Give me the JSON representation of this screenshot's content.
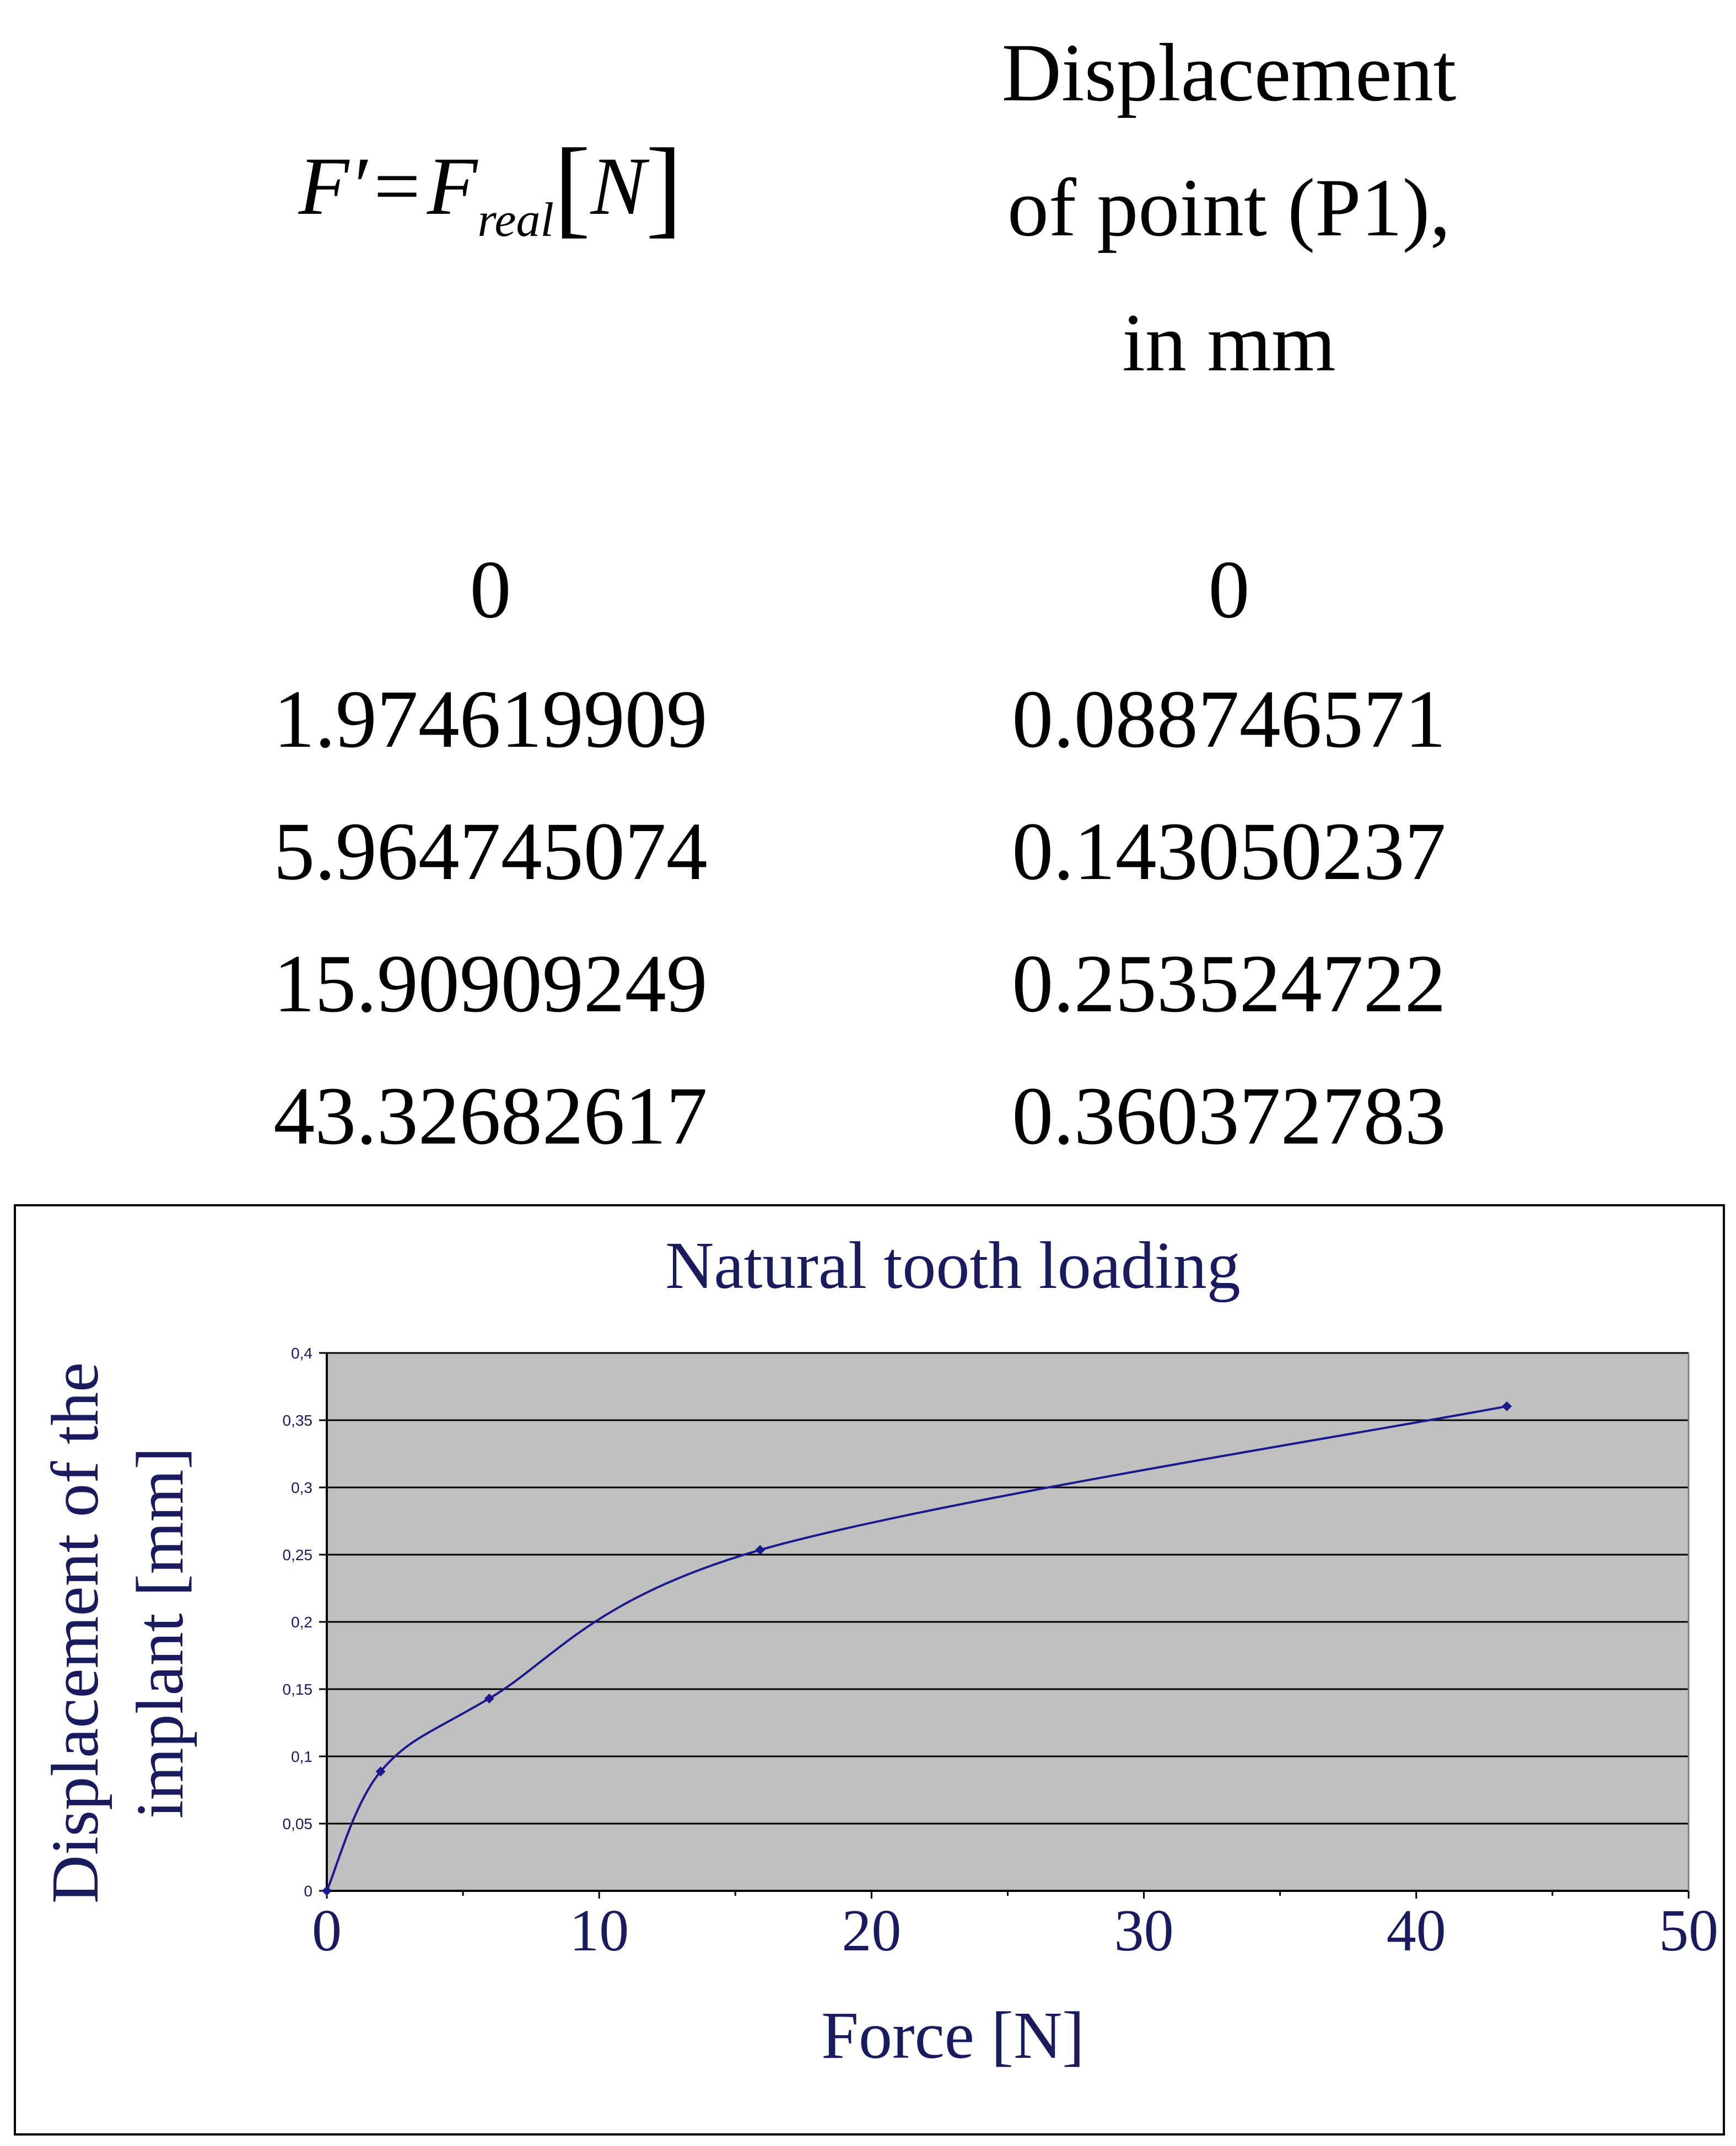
{
  "table": {
    "force_header": {
      "symbol": "F′",
      "equals": "=",
      "main": "F",
      "subscript": "real",
      "unit": "N"
    },
    "displacement_header": [
      "Displacement",
      "of point (P1),",
      "in mm"
    ],
    "force_values": [
      "0",
      "1.974619909",
      "5.964745074",
      "15.90909249",
      "43.32682617"
    ],
    "displacement_values": [
      "0",
      "0.088746571",
      "0.143050237",
      "0.253524722",
      "0.360372783"
    ]
  },
  "chart_data": {
    "type": "line",
    "title": "Natural tooth loading",
    "xlabel": "Force [N]",
    "ylabel": "Displacement of the implant [mm]",
    "xlim": [
      0,
      50
    ],
    "ylim": [
      0,
      0.4
    ],
    "xticks": [
      "0",
      "10",
      "20",
      "30",
      "40",
      "50"
    ],
    "yticks": [
      "0",
      "0,05",
      "0,1",
      "0,15",
      "0,2",
      "0,25",
      "0,3",
      "0,35",
      "0,4"
    ],
    "grid": "horizontal",
    "legend": "none",
    "colors": {
      "line": "#1a1a8c",
      "plot_bg": "#c0c0c0",
      "grid": "#000000",
      "text": "#1a1a5e"
    },
    "series": [
      {
        "x": [
          0,
          1.974619909,
          5.964745074,
          15.90909249,
          43.32682617
        ],
        "y": [
          0,
          0.088746571,
          0.143050237,
          0.253524722,
          0.360372783
        ]
      }
    ]
  }
}
